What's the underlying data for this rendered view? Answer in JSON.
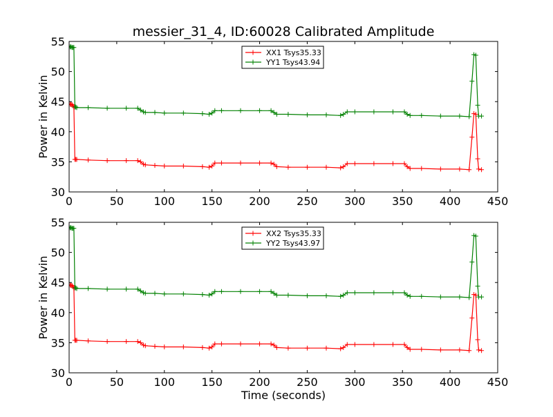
{
  "chart_data": [
    {
      "type": "line",
      "title": "messier_31_4, ID:60028 Calibrated Amplitude",
      "xlabel": "",
      "ylabel": "Power in Kelvin",
      "xlim": [
        0,
        450
      ],
      "ylim": [
        30,
        55
      ],
      "xticks": [
        "0",
        "50",
        "100",
        "150",
        "200",
        "250",
        "300",
        "350",
        "400",
        "450"
      ],
      "yticks": [
        "30",
        "35",
        "40",
        "45",
        "50",
        "55"
      ],
      "grid": false,
      "legend": "top-center",
      "marker": "+",
      "series": [
        {
          "name": "XX1 Tsys35.33",
          "color": "#ff0000",
          "x": [
            0,
            1,
            2,
            3,
            4,
            5,
            6,
            7,
            8,
            20,
            40,
            60,
            72,
            75,
            78,
            80,
            90,
            100,
            120,
            140,
            147,
            150,
            153,
            160,
            180,
            200,
            212,
            215,
            218,
            230,
            250,
            270,
            285,
            288,
            292,
            300,
            320,
            340,
            352,
            355,
            358,
            370,
            390,
            410,
            420,
            423,
            425,
            427,
            429,
            430,
            433
          ],
          "values": [
            44.6,
            44.6,
            44.5,
            44.5,
            44.3,
            44.1,
            35.4,
            35.4,
            35.4,
            35.3,
            35.2,
            35.2,
            35.2,
            35.0,
            34.6,
            34.5,
            34.4,
            34.3,
            34.3,
            34.2,
            34.1,
            34.3,
            34.8,
            34.8,
            34.8,
            34.8,
            34.8,
            34.6,
            34.2,
            34.1,
            34.1,
            34.1,
            34.0,
            34.2,
            34.7,
            34.7,
            34.7,
            34.7,
            34.7,
            34.2,
            33.9,
            33.9,
            33.8,
            33.8,
            33.7,
            39.1,
            43.0,
            42.9,
            35.5,
            33.8,
            33.7
          ]
        },
        {
          "name": "YY1 Tsys43.94",
          "color": "#008000",
          "x": [
            0,
            1,
            2,
            3,
            4,
            5,
            6,
            7,
            8,
            20,
            40,
            60,
            72,
            75,
            78,
            80,
            90,
            100,
            120,
            140,
            147,
            150,
            153,
            160,
            180,
            200,
            212,
            215,
            218,
            230,
            250,
            270,
            285,
            288,
            292,
            300,
            320,
            340,
            352,
            355,
            358,
            370,
            390,
            410,
            420,
            423,
            425,
            427,
            429,
            430,
            433
          ],
          "values": [
            54.2,
            54.1,
            54.1,
            54.0,
            54.0,
            54.0,
            44.1,
            44.1,
            44.0,
            44.0,
            43.9,
            43.9,
            43.9,
            43.6,
            43.3,
            43.2,
            43.2,
            43.1,
            43.1,
            43.0,
            42.9,
            43.1,
            43.5,
            43.5,
            43.5,
            43.5,
            43.5,
            43.2,
            42.9,
            42.9,
            42.8,
            42.8,
            42.7,
            42.9,
            43.3,
            43.3,
            43.3,
            43.3,
            43.3,
            42.9,
            42.7,
            42.7,
            42.6,
            42.6,
            42.5,
            48.4,
            52.8,
            52.7,
            44.4,
            42.6,
            42.6
          ]
        }
      ]
    },
    {
      "type": "line",
      "title": "",
      "xlabel": "Time (seconds)",
      "ylabel": "Power in Kelvin",
      "xlim": [
        0,
        450
      ],
      "ylim": [
        30,
        55
      ],
      "xticks": [
        "0",
        "50",
        "100",
        "150",
        "200",
        "250",
        "300",
        "350",
        "400",
        "450"
      ],
      "yticks": [
        "30",
        "35",
        "40",
        "45",
        "50",
        "55"
      ],
      "grid": false,
      "legend": "top-center",
      "marker": "+",
      "series": [
        {
          "name": "XX2 Tsys35.33",
          "color": "#ff0000",
          "x": [
            0,
            1,
            2,
            3,
            4,
            5,
            6,
            7,
            8,
            20,
            40,
            60,
            72,
            75,
            78,
            80,
            90,
            100,
            120,
            140,
            147,
            150,
            153,
            160,
            180,
            200,
            212,
            215,
            218,
            230,
            250,
            270,
            285,
            288,
            292,
            300,
            320,
            340,
            352,
            355,
            358,
            370,
            390,
            410,
            420,
            423,
            425,
            427,
            429,
            430,
            433
          ],
          "values": [
            44.6,
            44.6,
            44.5,
            44.5,
            44.3,
            44.1,
            35.4,
            35.4,
            35.4,
            35.3,
            35.2,
            35.2,
            35.2,
            35.0,
            34.6,
            34.5,
            34.4,
            34.3,
            34.3,
            34.2,
            34.1,
            34.3,
            34.8,
            34.8,
            34.8,
            34.8,
            34.8,
            34.6,
            34.2,
            34.1,
            34.1,
            34.1,
            34.0,
            34.2,
            34.7,
            34.7,
            34.7,
            34.7,
            34.7,
            34.2,
            33.9,
            33.9,
            33.8,
            33.8,
            33.7,
            39.1,
            43.0,
            42.9,
            35.5,
            33.8,
            33.7
          ]
        },
        {
          "name": "YY2 Tsys43.97",
          "color": "#008000",
          "x": [
            0,
            1,
            2,
            3,
            4,
            5,
            6,
            7,
            8,
            20,
            40,
            60,
            72,
            75,
            78,
            80,
            90,
            100,
            120,
            140,
            147,
            150,
            153,
            160,
            180,
            200,
            212,
            215,
            218,
            230,
            250,
            270,
            285,
            288,
            292,
            300,
            320,
            340,
            352,
            355,
            358,
            370,
            390,
            410,
            420,
            423,
            425,
            427,
            429,
            430,
            433
          ],
          "values": [
            54.2,
            54.1,
            54.1,
            54.0,
            54.0,
            54.0,
            44.1,
            44.1,
            44.0,
            44.0,
            43.9,
            43.9,
            43.9,
            43.6,
            43.3,
            43.2,
            43.2,
            43.1,
            43.1,
            43.0,
            42.9,
            43.1,
            43.5,
            43.5,
            43.5,
            43.5,
            43.5,
            43.2,
            42.9,
            42.9,
            42.8,
            42.8,
            42.7,
            42.9,
            43.3,
            43.3,
            43.3,
            43.3,
            43.3,
            42.9,
            42.7,
            42.7,
            42.6,
            42.6,
            42.5,
            48.4,
            52.8,
            52.7,
            44.4,
            42.6,
            42.6
          ]
        }
      ]
    }
  ]
}
